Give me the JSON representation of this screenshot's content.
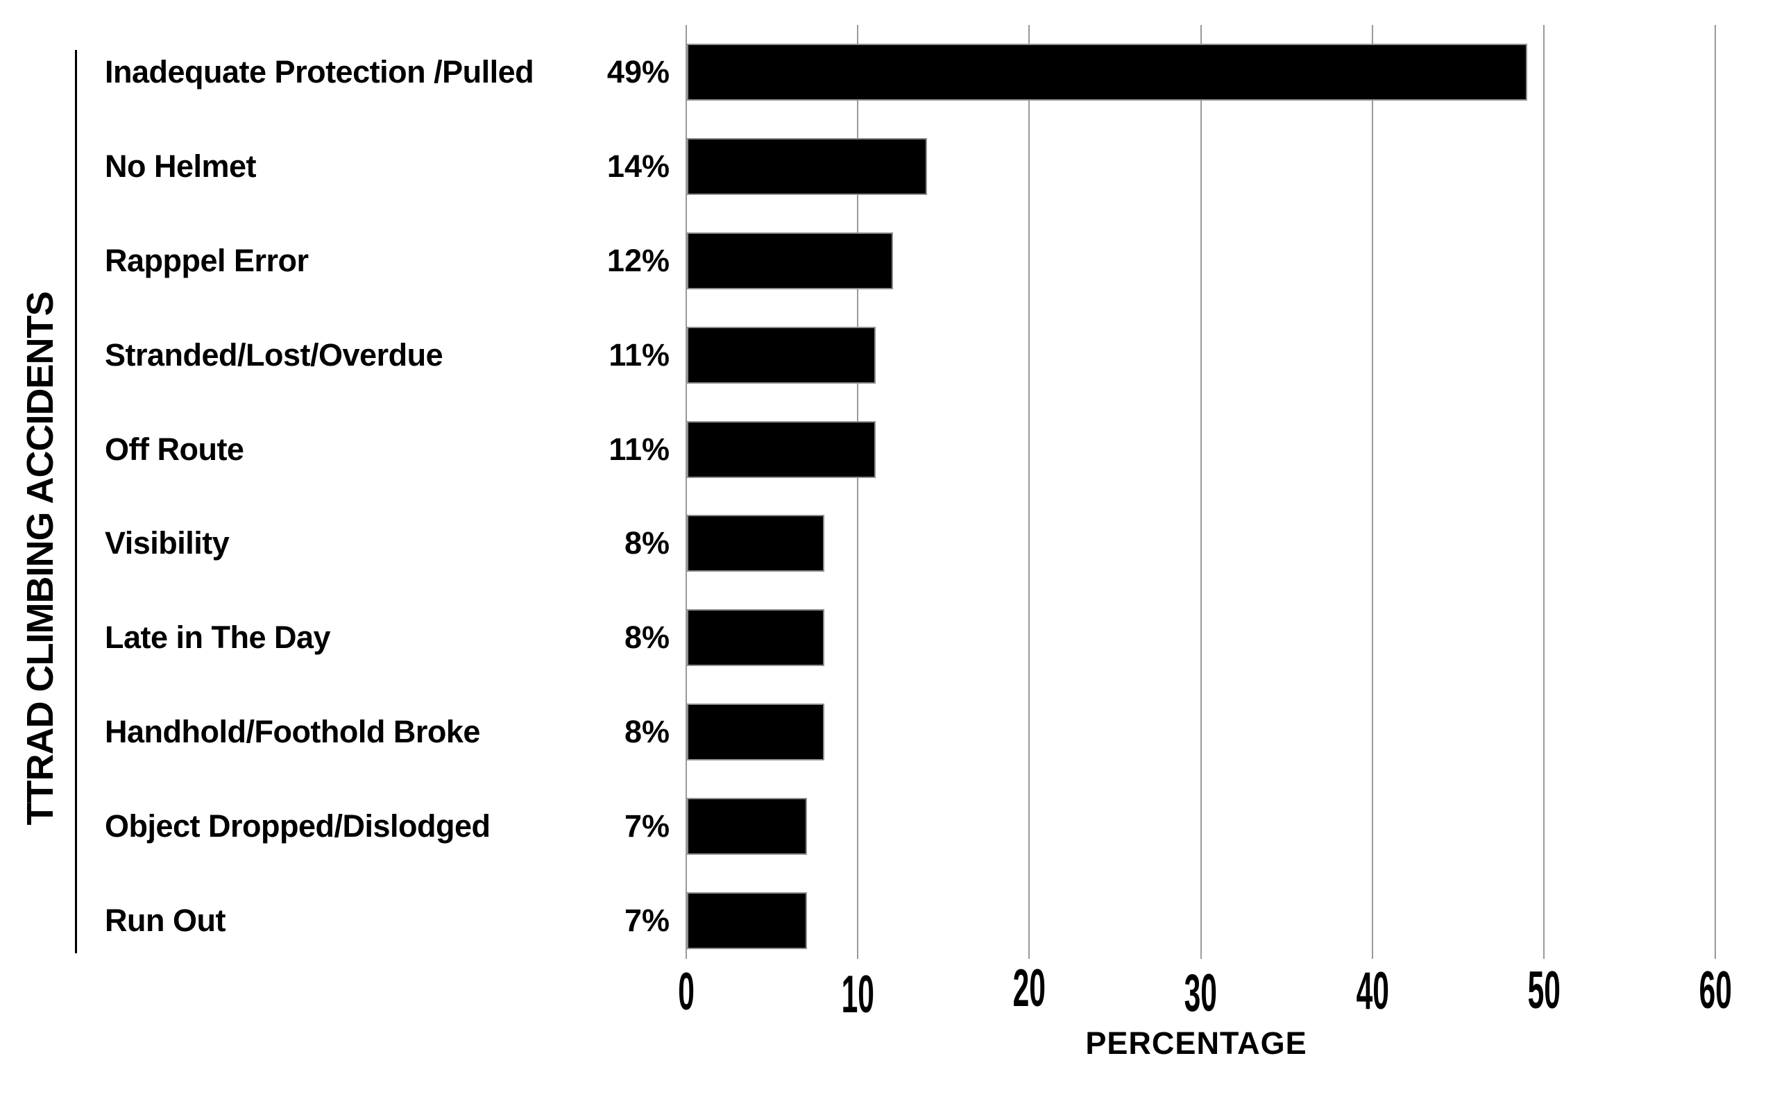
{
  "chart_data": {
    "type": "bar",
    "orientation": "horizontal",
    "title": "",
    "ylabel": "TTRAD CLIMBING ACCIDENTS",
    "xlabel": "PERCENTAGE",
    "categories": [
      "Inadequate Protection /Pulled",
      "No Helmet",
      "Rapppel Error",
      "Stranded/Lost/Overdue",
      "Off Route",
      "Visibility",
      "Late in The Day",
      "Handhold/Foothold Broke",
      "Object Dropped/Dislodged",
      "Run Out"
    ],
    "values": [
      49,
      14,
      12,
      11,
      11,
      8,
      8,
      8,
      7,
      7
    ],
    "value_labels": [
      "49%",
      "14%",
      "12%",
      "11%",
      "11%",
      "8%",
      "8%",
      "8%",
      "7%",
      "7%"
    ],
    "x_ticks": [
      "0",
      "10",
      "20",
      "30",
      "40",
      "50",
      "60"
    ],
    "xlim": [
      0,
      60
    ],
    "grid": "vertical-gridlines-on",
    "legend": "none",
    "colors": {
      "bar": "#000000",
      "bar_edge": "#8e8e8e",
      "gridline": "#98989e",
      "axis_rule": "#000000",
      "text": "#000000",
      "background": "#ffffff"
    }
  }
}
